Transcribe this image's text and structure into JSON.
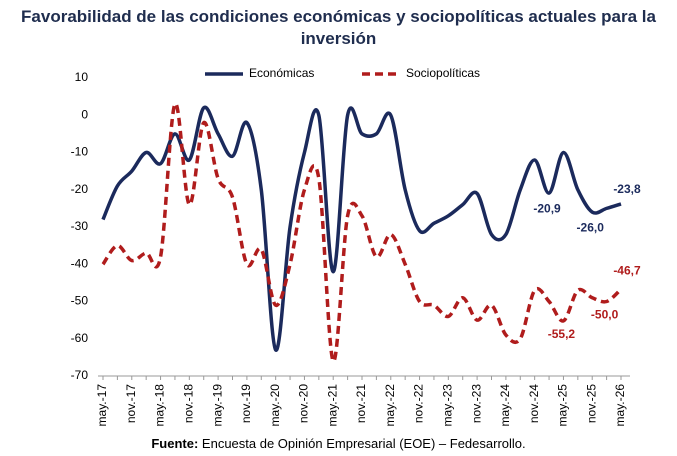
{
  "chart_data": {
    "type": "line",
    "title": "Favorabilidad de las condiciones económicas y sociopolíticas actuales para la inversión",
    "categories": [
      "may.-17",
      null,
      "nov.-17",
      null,
      "may.-18",
      null,
      "nov.-18",
      null,
      "may.-19",
      null,
      "nov.-19",
      null,
      "may.-20",
      null,
      "nov.-20",
      null,
      "may.-21",
      null,
      "nov.-21",
      null,
      "may.-22",
      null,
      "nov.-22",
      null,
      "may.-23",
      null,
      "nov.-23",
      null,
      "may.-24",
      null,
      "nov.-24",
      null,
      "may.-25",
      null,
      "nov.-25",
      null,
      "may.-26"
    ],
    "series": [
      {
        "name": "Económicas",
        "color": "#1b2a5c",
        "dash": false,
        "values": [
          -28,
          -19,
          -15,
          -10,
          -13,
          -5,
          -12,
          2,
          -5,
          -11,
          -2,
          -20,
          -63,
          -30,
          -10,
          0,
          -42,
          0,
          -5,
          -5,
          0,
          -20,
          -31,
          -29,
          -27,
          -24,
          -21,
          -32,
          -32,
          -20,
          -12,
          -20.9,
          -10,
          -20,
          -26.0,
          -25,
          -23.8
        ],
        "value_labels": [
          null,
          null,
          null,
          null,
          null,
          null,
          null,
          null,
          null,
          null,
          null,
          null,
          null,
          null,
          null,
          null,
          null,
          null,
          null,
          null,
          null,
          null,
          null,
          null,
          null,
          null,
          null,
          null,
          null,
          null,
          null,
          "-20,9",
          null,
          null,
          "-26,0",
          null,
          "-23,8"
        ]
      },
      {
        "name": "Sociopolíticas",
        "color": "#b01c1c",
        "dash": true,
        "values": [
          -40,
          -35,
          -39,
          -37,
          -38,
          3,
          -24,
          -2,
          -17,
          -22,
          -40,
          -36,
          -51,
          -40,
          -20,
          -17,
          -66,
          -27,
          -27,
          -38,
          -32,
          -40,
          -50,
          -51,
          -54,
          -49,
          -55,
          -51,
          -59,
          -60,
          -47,
          -50,
          -55.2,
          -47,
          -49,
          -50.0,
          -46.7
        ],
        "value_labels": [
          null,
          null,
          null,
          null,
          null,
          null,
          null,
          null,
          null,
          null,
          null,
          null,
          null,
          null,
          null,
          null,
          null,
          null,
          null,
          null,
          null,
          null,
          null,
          null,
          null,
          null,
          null,
          null,
          null,
          null,
          null,
          null,
          "-55,2",
          null,
          null,
          "-50,0",
          "-46,7"
        ]
      }
    ],
    "ylim": [
      -70,
      10
    ],
    "yticks": [
      10,
      0,
      -10,
      -20,
      -30,
      -40,
      -50,
      -60,
      -70
    ],
    "grid": false,
    "legend": "top",
    "source_label": "Fuente:",
    "source_text": "Encuesta de Opinión Empresarial (EOE) – Fedesarrollo."
  }
}
